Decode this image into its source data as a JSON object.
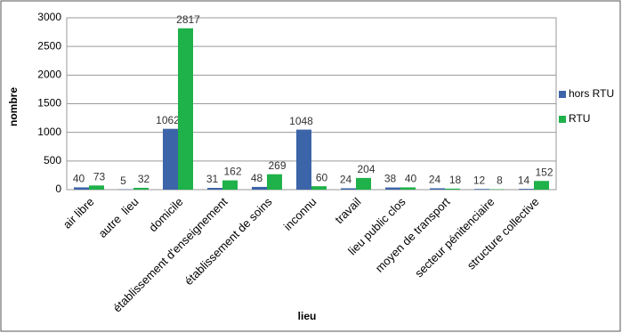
{
  "chart_data": {
    "type": "bar",
    "categories": [
      "air libre",
      "autre  lieu",
      "domicile",
      "établissement d'enseignement",
      "établissement de soins",
      "inconnu",
      "travail",
      "lieu public clos",
      "moyen de transport",
      "secteur pénitenciaire",
      "structure collective"
    ],
    "series": [
      {
        "name": "hors RTU",
        "color": "#3c64a8",
        "values": [
          40,
          5,
          1062,
          31,
          48,
          1048,
          24,
          38,
          24,
          12,
          14
        ]
      },
      {
        "name": "RTU",
        "color": "#1fb14a",
        "values": [
          73,
          32,
          2817,
          162,
          269,
          60,
          204,
          40,
          18,
          8,
          152
        ]
      }
    ],
    "ylabel": "nombre",
    "xlabel": "lieu",
    "ylim": [
      0,
      3000
    ],
    "yticks": [
      0,
      500,
      1000,
      1500,
      2000,
      2500,
      3000
    ],
    "grid": true,
    "legend": "right"
  }
}
